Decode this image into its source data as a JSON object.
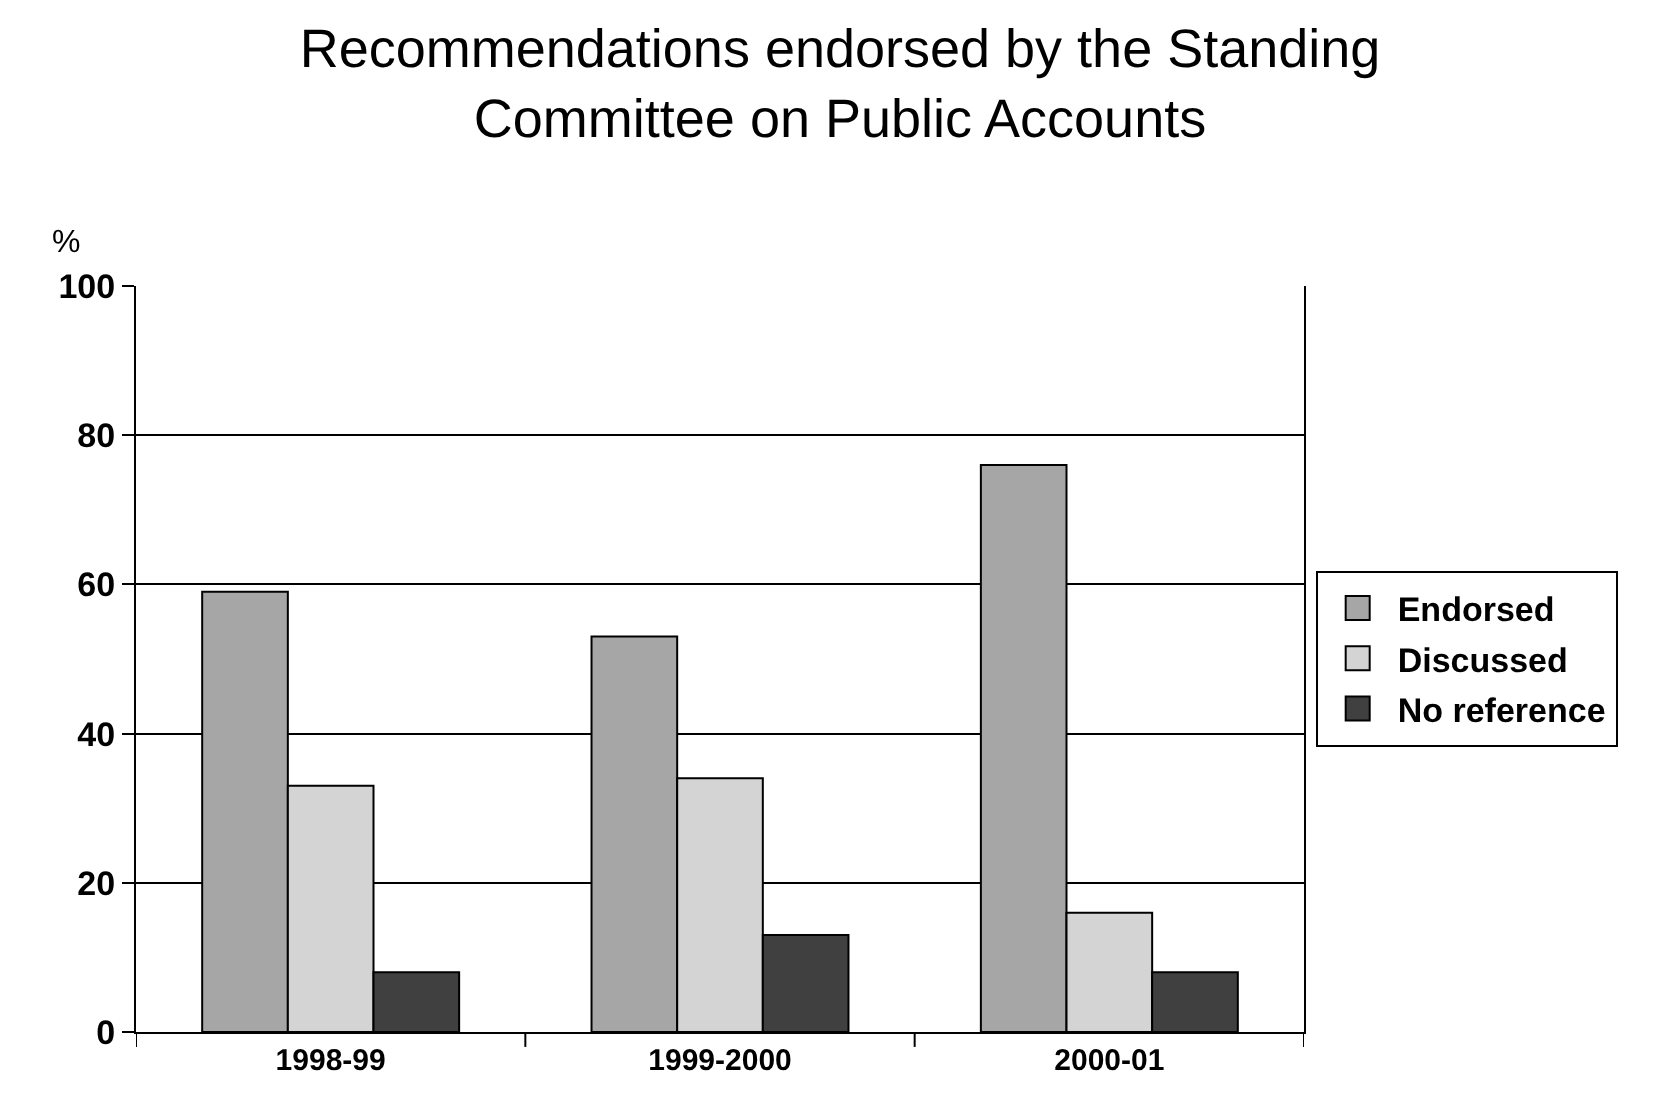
{
  "chart_data": {
    "type": "bar",
    "title": "Recommendations endorsed by the Standing Committee on Public Accounts",
    "ylabel": "%",
    "categories": [
      "1998-99",
      "1999-2000",
      "2000-01"
    ],
    "series": [
      {
        "name": "Endorsed",
        "color": "#a6a6a6",
        "values": [
          59,
          53,
          76
        ]
      },
      {
        "name": "Discussed",
        "color": "#d4d4d4",
        "values": [
          33,
          34,
          16
        ]
      },
      {
        "name": "No reference",
        "color": "#404040",
        "values": [
          8,
          13,
          8
        ]
      }
    ],
    "ylim": [
      0,
      100
    ],
    "yticks": [
      0,
      20,
      40,
      60,
      80,
      100
    ],
    "grid": "y",
    "legend": "right"
  }
}
